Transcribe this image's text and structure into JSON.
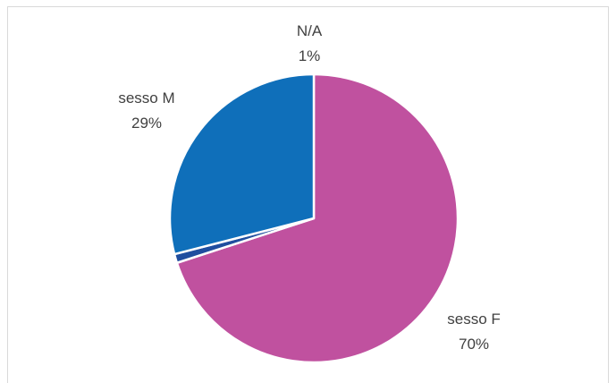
{
  "chart_data": {
    "type": "pie",
    "title": "",
    "slices": [
      {
        "label": "sesso F",
        "percent_label": "70%",
        "value": 70,
        "color": "#c0519f"
      },
      {
        "label": "N/A",
        "percent_label": "1%",
        "value": 1,
        "color": "#1f4e9f"
      },
      {
        "label": "sesso M",
        "percent_label": "29%",
        "value": 29,
        "color": "#0f6fba"
      }
    ],
    "legend": "none",
    "data_labels": "category-and-percent, outside"
  }
}
